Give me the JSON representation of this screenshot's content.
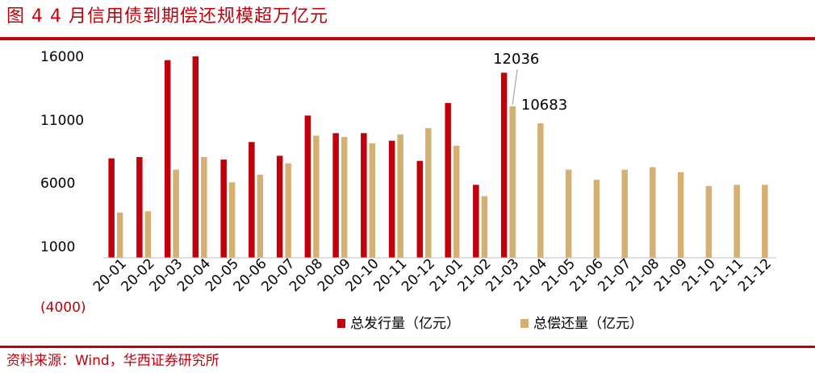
{
  "figure": {
    "title": "图 4   4 月信用债到期偿还规模超万亿元",
    "source": "资料来源：Wind，华西证券研究所"
  },
  "colors": {
    "issuance": "#c0000b",
    "repayment": "#d4b172",
    "accent": "#c0000b"
  },
  "chart_data": {
    "type": "bar",
    "categories": [
      "20-01",
      "20-02",
      "20-03",
      "20-04",
      "20-05",
      "20-06",
      "20-07",
      "20-08",
      "20-09",
      "20-10",
      "20-11",
      "20-12",
      "21-01",
      "21-02",
      "21-03",
      "21-04",
      "21-05",
      "21-06",
      "21-07",
      "21-08",
      "21-09",
      "21-10",
      "21-11",
      "21-12"
    ],
    "series": [
      {
        "name": "总发行量（亿元）",
        "values": [
          7900,
          8000,
          15700,
          16000,
          7800,
          9200,
          8100,
          11300,
          9900,
          9900,
          9300,
          7700,
          12300,
          5800,
          14700,
          null,
          null,
          null,
          null,
          null,
          null,
          null,
          null,
          null
        ]
      },
      {
        "name": "总偿还量（亿元）",
        "values": [
          3600,
          3700,
          7000,
          8000,
          6000,
          6600,
          7500,
          9700,
          9600,
          9100,
          9800,
          10300,
          8900,
          4900,
          12036,
          10683,
          7000,
          6200,
          7000,
          7200,
          6800,
          5700,
          5800,
          5800
        ]
      }
    ],
    "yticks": [
      "16000",
      "11000",
      "6000",
      "1000",
      "(4000)"
    ],
    "ylim": [
      -4000,
      16000
    ],
    "annotations": [
      "12036",
      "10683"
    ],
    "legend_position": "bottom"
  }
}
